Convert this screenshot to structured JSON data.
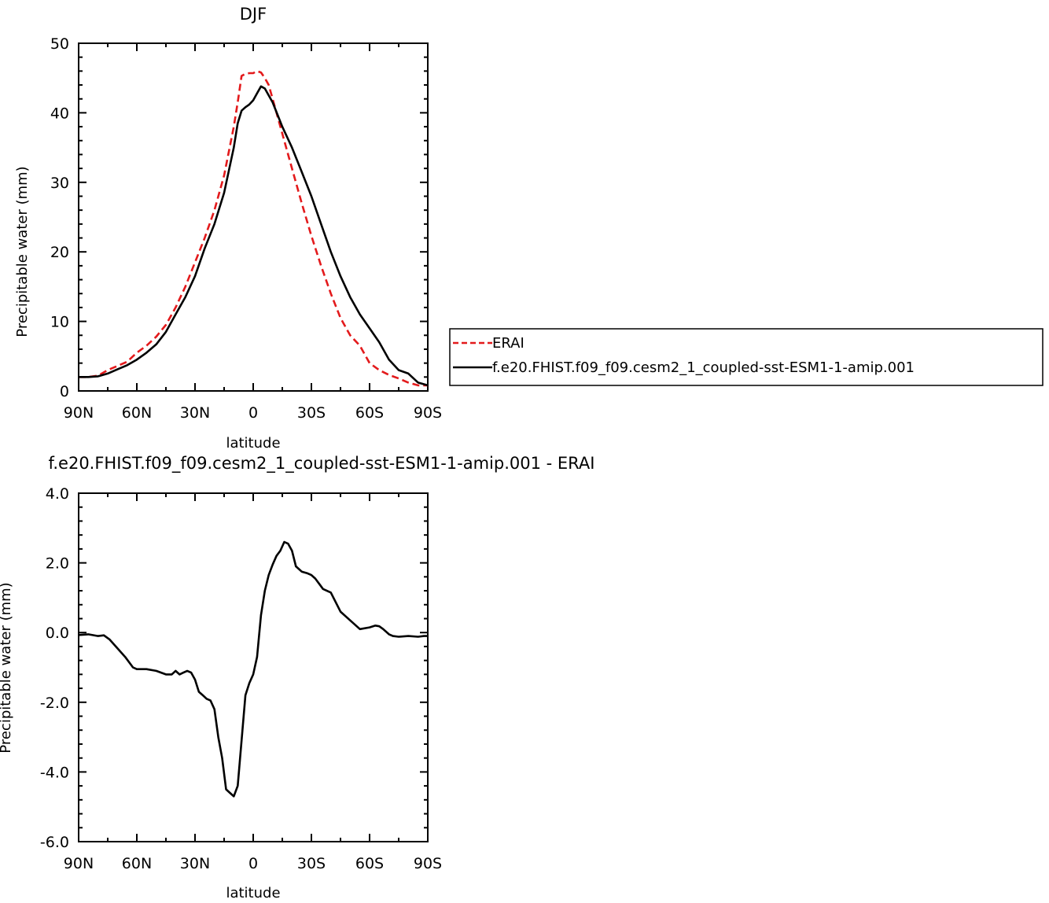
{
  "chart_data": [
    {
      "type": "line",
      "title": "DJF",
      "xlabel": "latitude",
      "ylabel": "Precipitable water (mm)",
      "xlim": [
        -90,
        90
      ],
      "ylim": [
        0,
        50
      ],
      "x_ticks": [
        -90,
        -60,
        -30,
        0,
        30,
        60,
        90
      ],
      "x_tick_labels": [
        "90N",
        "60N",
        "30N",
        "0",
        "30S",
        "60S",
        "90S"
      ],
      "y_ticks": [
        0,
        10,
        20,
        30,
        40,
        50
      ],
      "y_tick_labels": [
        "0",
        "10",
        "20",
        "30",
        "40",
        "50"
      ],
      "legend_position": "right",
      "series": [
        {
          "name": "ERAI",
          "color": "#e31a1c",
          "dash": "dashed",
          "x": [
            -90,
            -85,
            -80,
            -75,
            -70,
            -65,
            -60,
            -55,
            -50,
            -45,
            -40,
            -35,
            -30,
            -25,
            -20,
            -15,
            -10,
            -8,
            -6,
            -4,
            -2,
            0,
            2,
            4,
            6,
            8,
            10,
            15,
            20,
            25,
            30,
            35,
            40,
            45,
            50,
            55,
            60,
            65,
            70,
            75,
            80,
            85,
            90
          ],
          "y": [
            2,
            2,
            2.2,
            3,
            3.6,
            4.2,
            5.5,
            6.5,
            7.8,
            9.5,
            12,
            15,
            18.5,
            22,
            26,
            31,
            38,
            41.5,
            45.3,
            45.6,
            45.7,
            45.7,
            46,
            45.8,
            45,
            44,
            42,
            37,
            32,
            27,
            22.3,
            18,
            14,
            10.5,
            8,
            6.5,
            4,
            3,
            2.3,
            1.8,
            1.2,
            0.8,
            0.8
          ]
        },
        {
          "name": "f.e20.FHIST.f09_f09.cesm2_1_coupled-sst-ESM1-1-amip.001",
          "color": "#000000",
          "dash": "solid",
          "x": [
            -90,
            -85,
            -80,
            -75,
            -70,
            -65,
            -60,
            -55,
            -50,
            -45,
            -40,
            -35,
            -30,
            -25,
            -20,
            -15,
            -10,
            -8,
            -6,
            -4,
            -2,
            0,
            2,
            4,
            6,
            8,
            10,
            15,
            20,
            25,
            30,
            35,
            40,
            45,
            50,
            55,
            60,
            65,
            70,
            75,
            80,
            85,
            90
          ],
          "y": [
            2,
            2,
            2.1,
            2.5,
            3.1,
            3.7,
            4.5,
            5.5,
            6.7,
            8.5,
            11,
            13.5,
            16.5,
            20.5,
            24,
            28.5,
            35,
            38.5,
            40.3,
            40.8,
            41.2,
            41.8,
            42.8,
            43.8,
            43.5,
            42.5,
            41.5,
            38,
            35,
            31.5,
            28,
            24,
            20,
            16.5,
            13.5,
            11,
            9,
            7,
            4.5,
            3,
            2.5,
            1.2,
            0.8
          ]
        }
      ]
    },
    {
      "type": "line",
      "title": "f.e20.FHIST.f09_f09.cesm2_1_coupled-sst-ESM1-1-amip.001 - ERAI",
      "xlabel": "latitude",
      "ylabel": "Precipitable water (mm)",
      "xlim": [
        -90,
        90
      ],
      "ylim": [
        -6,
        4
      ],
      "x_ticks": [
        -90,
        -60,
        -30,
        0,
        30,
        60,
        90
      ],
      "x_tick_labels": [
        "90N",
        "60N",
        "30N",
        "0",
        "30S",
        "60S",
        "90S"
      ],
      "y_ticks": [
        -6,
        -4,
        -2,
        0,
        2,
        4
      ],
      "y_tick_labels": [
        "-6.0",
        "-4.0",
        "-2.0",
        "0.0",
        "2.0",
        "4.0"
      ],
      "series": [
        {
          "name": "",
          "color": "#000000",
          "dash": "solid",
          "x": [
            -90,
            -85,
            -80,
            -77,
            -74,
            -70,
            -66,
            -62,
            -60,
            -55,
            -50,
            -45,
            -42,
            -40,
            -38,
            -36,
            -34,
            -32,
            -30,
            -28,
            -26,
            -24,
            -22,
            -20,
            -18,
            -16,
            -14,
            -12,
            -10,
            -8,
            -6,
            -4,
            -2,
            0,
            2,
            4,
            6,
            8,
            10,
            12,
            14,
            16,
            18,
            20,
            22,
            25,
            28,
            30,
            32,
            34,
            36,
            40,
            45,
            50,
            55,
            60,
            63,
            65,
            67,
            70,
            72,
            75,
            80,
            85,
            88,
            90
          ],
          "y": [
            -0.07,
            -0.05,
            -0.1,
            -0.08,
            -0.2,
            -0.45,
            -0.7,
            -1.0,
            -1.05,
            -1.05,
            -1.1,
            -1.2,
            -1.2,
            -1.1,
            -1.2,
            -1.15,
            -1.1,
            -1.15,
            -1.35,
            -1.7,
            -1.8,
            -1.9,
            -1.95,
            -2.2,
            -3,
            -3.6,
            -4.5,
            -4.6,
            -4.7,
            -4.4,
            -3.1,
            -1.8,
            -1.45,
            -1.2,
            -0.7,
            0.5,
            1.2,
            1.65,
            1.95,
            2.2,
            2.35,
            2.6,
            2.55,
            2.35,
            1.9,
            1.75,
            1.7,
            1.65,
            1.55,
            1.4,
            1.25,
            1.15,
            0.6,
            0.35,
            0.1,
            0.15,
            0.2,
            0.18,
            0.1,
            -0.05,
            -0.1,
            -0.12,
            -0.1,
            -0.12,
            -0.1,
            -0.1
          ]
        }
      ]
    }
  ]
}
